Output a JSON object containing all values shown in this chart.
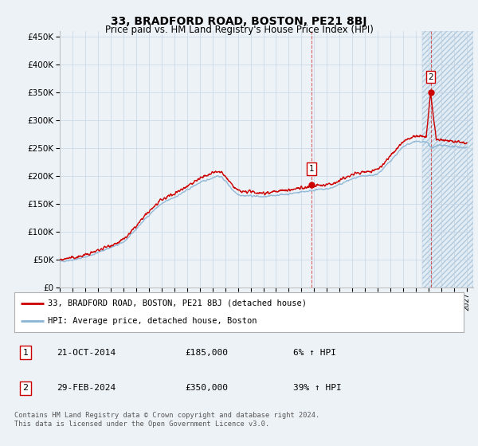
{
  "title": "33, BRADFORD ROAD, BOSTON, PE21 8BJ",
  "subtitle": "Price paid vs. HM Land Registry's House Price Index (HPI)",
  "title_fontsize": 10,
  "subtitle_fontsize": 8.5,
  "ylim": [
    0,
    460000
  ],
  "xlim_start": 1995.0,
  "xlim_end": 2027.5,
  "yticks": [
    0,
    50000,
    100000,
    150000,
    200000,
    250000,
    300000,
    350000,
    400000,
    450000
  ],
  "ytick_labels": [
    "£0",
    "£50K",
    "£100K",
    "£150K",
    "£200K",
    "£250K",
    "£300K",
    "£350K",
    "£400K",
    "£450K"
  ],
  "xtick_years": [
    1995,
    1996,
    1997,
    1998,
    1999,
    2000,
    2001,
    2002,
    2003,
    2004,
    2005,
    2006,
    2007,
    2008,
    2009,
    2010,
    2011,
    2012,
    2013,
    2014,
    2015,
    2016,
    2017,
    2018,
    2019,
    2020,
    2021,
    2022,
    2023,
    2024,
    2025,
    2026,
    2027
  ],
  "hpi_color": "#8ab4d4",
  "price_color": "#cc0000",
  "sale1_x": 2014.8,
  "sale1_y": 185000,
  "sale2_x": 2024.15,
  "sale2_y": 350000,
  "legend_label_price": "33, BRADFORD ROAD, BOSTON, PE21 8BJ (detached house)",
  "legend_label_hpi": "HPI: Average price, detached house, Boston",
  "table_row1": [
    "1",
    "21-OCT-2014",
    "£185,000",
    "6% ↑ HPI"
  ],
  "table_row2": [
    "2",
    "29-FEB-2024",
    "£350,000",
    "39% ↑ HPI"
  ],
  "footer_text": "Contains HM Land Registry data © Crown copyright and database right 2024.\nThis data is licensed under the Open Government Licence v3.0.",
  "bg_color": "#edf2f7",
  "hatch_region_start": 2023.5,
  "plot_bg_color": "#edf2f7"
}
